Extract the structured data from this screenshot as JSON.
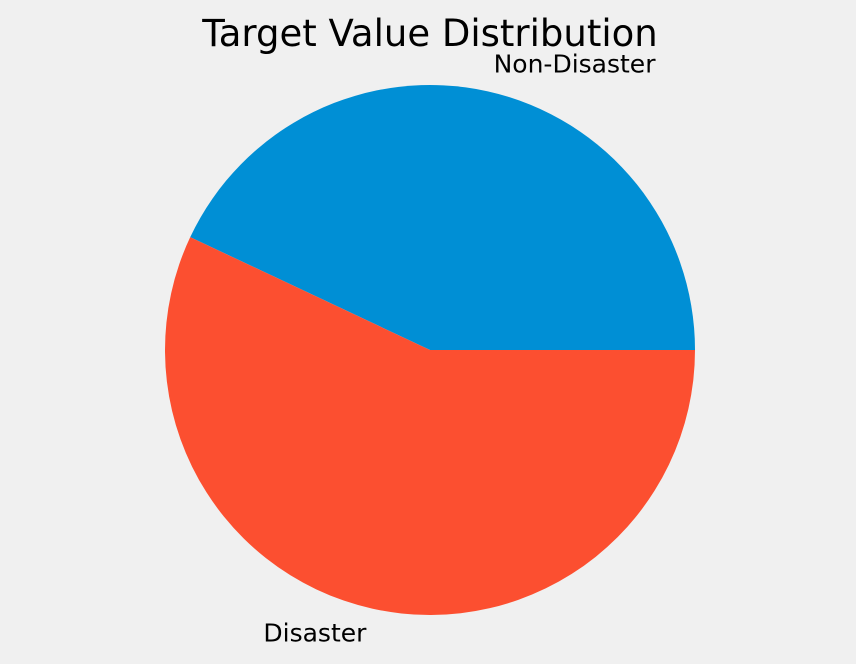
{
  "chart_data": {
    "type": "pie",
    "title": "Target Value Distribution",
    "labels": [
      "Non-Disaster",
      "Disaster"
    ],
    "values": [
      43.0,
      57.0
    ],
    "colors": [
      "#008fd5",
      "#fc4f30"
    ],
    "start_angle_deg": 0,
    "direction": "counterclockwise",
    "legend": "none"
  },
  "background": "#f0f0f0"
}
